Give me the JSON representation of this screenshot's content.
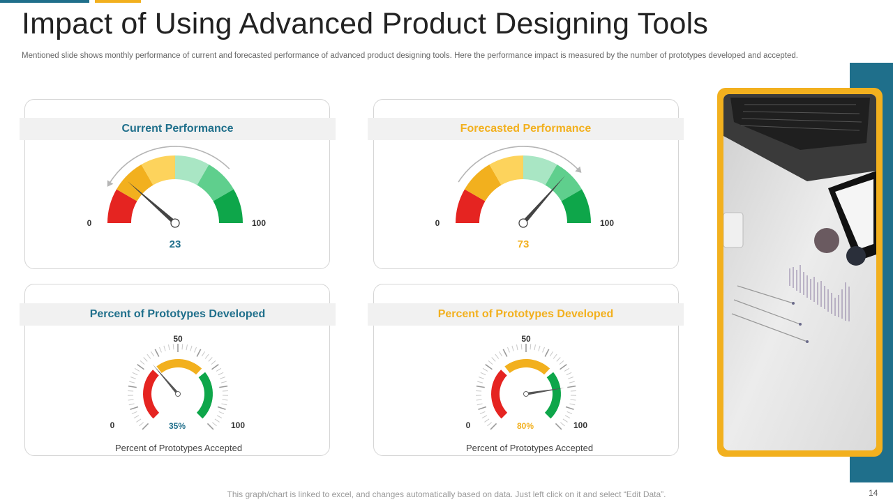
{
  "title": "Impact of Using Advanced Product Designing Tools",
  "subtitle": "Mentioned slide shows monthly performance  of current and forecasted  performance  of advanced  product designing tools. Here the performance  impact is measured  by the number  of prototypes developed and accepted.",
  "footer": "This graph/chart is linked to excel, and changes automatically based on data. Just left click on it and select “Edit Data”.",
  "page_number": "14",
  "colors": {
    "blue": "#1f6f8b",
    "gold": "#f2b01e",
    "red": "#e52421",
    "green": "#0ea64a"
  },
  "chart_data": [
    {
      "type": "gauge",
      "title": "Current Performance",
      "value": 23,
      "value_label": "23",
      "min_label": "0",
      "max_label": "100",
      "range": [
        0,
        100
      ]
    },
    {
      "type": "gauge",
      "title": "Forecasted Performance",
      "value": 73,
      "value_label": "73",
      "min_label": "0",
      "max_label": "100",
      "range": [
        0,
        100
      ]
    },
    {
      "type": "gauge",
      "title": "Percent of Prototypes Developed",
      "value": 35,
      "value_label": "35%",
      "min_label": "0",
      "mid_label": "50",
      "max_label": "100",
      "range": [
        0,
        100
      ],
      "caption": "Percent of Prototypes Accepted"
    },
    {
      "type": "gauge",
      "title": "Percent of Prototypes Developed",
      "value": 80,
      "value_label": "80%",
      "min_label": "0",
      "mid_label": "50",
      "max_label": "100",
      "range": [
        0,
        100
      ],
      "caption": "Percent of Prototypes Accepted"
    }
  ]
}
